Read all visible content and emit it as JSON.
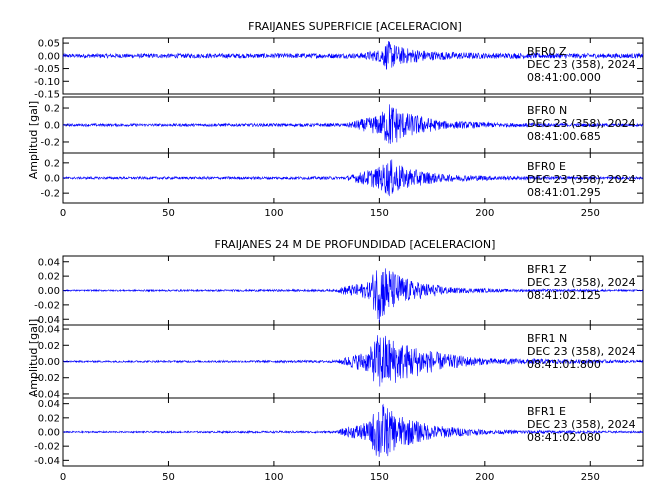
{
  "chart_data": [
    {
      "type": "line",
      "title": "FRAIJANES SUPERFICIE [ACELERACION]",
      "ylabel": "Amplitud [gal]",
      "xlabel": "",
      "xlim": [
        0,
        275
      ],
      "xticks": [
        "0",
        "50",
        "100",
        "150",
        "200",
        "250"
      ],
      "line_color": "#0000ff",
      "grid": false,
      "traces": [
        {
          "name": "BFR0 Z",
          "station": "BFR0",
          "component": "Z",
          "date": "DEC 23 (358), 2024",
          "time": "08:41:00.000",
          "ylim": [
            -0.15,
            0.07
          ],
          "yticks": [
            "0.05",
            "0.00",
            "-0.05",
            "-0.10",
            "-0.15"
          ],
          "envelope": [
            [
              0,
              0.008
            ],
            [
              140,
              0.01
            ],
            [
              150,
              0.025
            ],
            [
              154,
              0.06
            ],
            [
              160,
              0.035
            ],
            [
              175,
              0.018
            ],
            [
              200,
              0.011
            ],
            [
              275,
              0.009
            ]
          ]
        },
        {
          "name": "BFR0 N",
          "station": "BFR0",
          "component": "N",
          "date": "DEC 23 (358), 2024",
          "time": "08:41:00.685",
          "ylim": [
            -0.33,
            0.33
          ],
          "yticks": [
            "0.2",
            "0.0",
            "-0.2"
          ],
          "envelope": [
            [
              0,
              0.015
            ],
            [
              134,
              0.02
            ],
            [
              140,
              0.06
            ],
            [
              150,
              0.12
            ],
            [
              155,
              0.28
            ],
            [
              162,
              0.15
            ],
            [
              180,
              0.05
            ],
            [
              210,
              0.025
            ],
            [
              275,
              0.015
            ]
          ]
        },
        {
          "name": "BFR0 E",
          "station": "BFR0",
          "component": "E",
          "date": "DEC 23 (358), 2024",
          "time": "08:41:01.295",
          "ylim": [
            -0.33,
            0.33
          ],
          "yticks": [
            "0.2",
            "0.0",
            "-0.2"
          ],
          "envelope": [
            [
              0,
              0.015
            ],
            [
              134,
              0.02
            ],
            [
              140,
              0.07
            ],
            [
              150,
              0.15
            ],
            [
              155,
              0.26
            ],
            [
              162,
              0.14
            ],
            [
              180,
              0.05
            ],
            [
              210,
              0.025
            ],
            [
              275,
              0.015
            ]
          ]
        }
      ]
    },
    {
      "type": "line",
      "title": "FRAIJANES 24 M DE PROFUNDIDAD [ACELERACION]",
      "ylabel": "Amplitud [gal]",
      "xlabel": "",
      "xlim": [
        0,
        275
      ],
      "xticks": [
        "0",
        "50",
        "100",
        "150",
        "200",
        "250"
      ],
      "line_color": "#0000ff",
      "grid": false,
      "traces": [
        {
          "name": "BFR1 Z",
          "station": "BFR1",
          "component": "Z",
          "date": "DEC 23 (358), 2024",
          "time": "08:41:02.125",
          "ylim": [
            -0.048,
            0.048
          ],
          "yticks": [
            "0.04",
            "0.02",
            "0.00",
            "-0.02",
            "-0.04"
          ],
          "envelope": [
            [
              0,
              0.001
            ],
            [
              130,
              0.0015
            ],
            [
              133,
              0.006
            ],
            [
              145,
              0.012
            ],
            [
              150,
              0.045
            ],
            [
              156,
              0.028
            ],
            [
              165,
              0.014
            ],
            [
              185,
              0.004
            ],
            [
              210,
              0.002
            ],
            [
              275,
              0.0012
            ]
          ]
        },
        {
          "name": "BFR1 N",
          "station": "BFR1",
          "component": "N",
          "date": "DEC 23 (358), 2024",
          "time": "08:41:01.800",
          "ylim": [
            -0.045,
            0.045
          ],
          "yticks": [
            "0.04",
            "0.02",
            "0.00",
            "-0.02",
            "-0.04"
          ],
          "envelope": [
            [
              0,
              0.001
            ],
            [
              130,
              0.0015
            ],
            [
              133,
              0.005
            ],
            [
              145,
              0.014
            ],
            [
              150,
              0.038
            ],
            [
              160,
              0.024
            ],
            [
              180,
              0.01
            ],
            [
              200,
              0.004
            ],
            [
              275,
              0.0015
            ]
          ]
        },
        {
          "name": "BFR1 E",
          "station": "BFR1",
          "component": "E",
          "date": "DEC 23 (358), 2024",
          "time": "08:41:02.080",
          "ylim": [
            -0.048,
            0.048
          ],
          "yticks": [
            "0.04",
            "0.02",
            "0.00",
            "-0.02",
            "-0.04"
          ],
          "envelope": [
            [
              0,
              0.001
            ],
            [
              130,
              0.0015
            ],
            [
              133,
              0.006
            ],
            [
              145,
              0.014
            ],
            [
              150,
              0.046
            ],
            [
              158,
              0.024
            ],
            [
              175,
              0.01
            ],
            [
              200,
              0.003
            ],
            [
              275,
              0.0012
            ]
          ]
        }
      ]
    }
  ]
}
